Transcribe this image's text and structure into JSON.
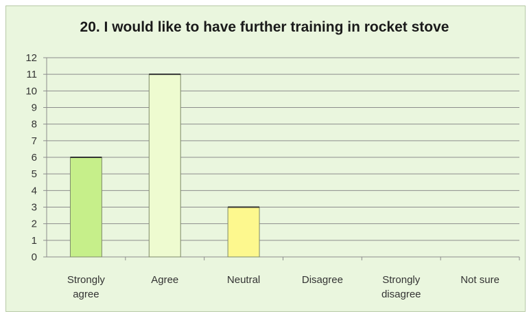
{
  "chart_data": {
    "type": "bar",
    "title": "20. I would like to have further training in rocket stove",
    "xlabel": "",
    "ylabel": "",
    "categories": [
      [
        "Strongly",
        "agree"
      ],
      [
        "Agree"
      ],
      [
        "Neutral"
      ],
      [
        "Disagree"
      ],
      [
        "Strongly",
        "disagree"
      ],
      [
        "Not sure"
      ]
    ],
    "values": [
      6,
      11,
      3,
      0,
      0,
      0
    ],
    "bar_colors": [
      "#c6ef8a",
      "#eefbd0",
      "#fdf88e",
      "#e6f5c8",
      "#e6f5c8",
      "#e6f5c8"
    ],
    "ylim": [
      0,
      12
    ],
    "yticks": [
      0,
      1,
      2,
      3,
      4,
      5,
      6,
      7,
      8,
      9,
      10,
      11,
      12
    ],
    "grid": true,
    "background": "#eaf6de"
  }
}
